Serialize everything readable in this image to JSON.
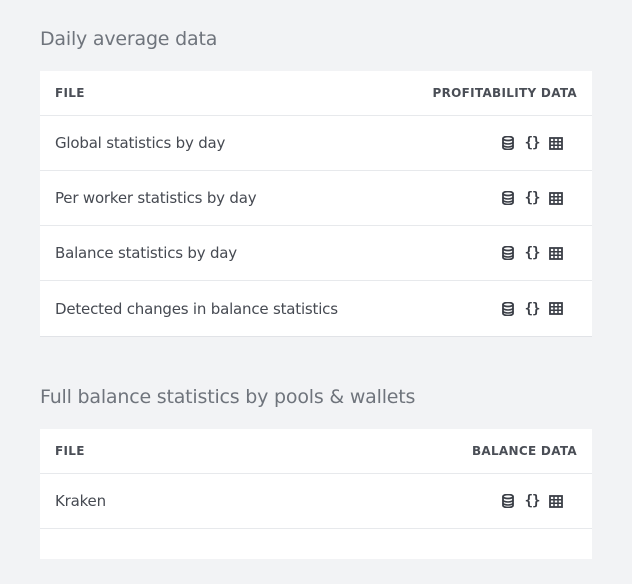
{
  "sections": [
    {
      "title": "Daily average data",
      "col_file": "FILE",
      "col_data": "PROFITABILITY DATA",
      "rows": [
        {
          "name": "Global statistics by day",
          "icons": [
            "database-icon",
            "json-icon",
            "table-icon"
          ]
        },
        {
          "name": "Per worker statistics by day",
          "icons": [
            "database-icon",
            "json-icon",
            "table-icon"
          ]
        },
        {
          "name": "Balance statistics by day",
          "icons": [
            "database-icon",
            "json-icon",
            "table-icon"
          ]
        },
        {
          "name": "Detected changes in balance statistics",
          "icons": [
            "database-icon",
            "json-icon",
            "table-icon"
          ]
        }
      ]
    },
    {
      "title": "Full balance statistics by pools & wallets",
      "col_file": "FILE",
      "col_data": "BALANCE DATA",
      "rows": [
        {
          "name": "Kraken",
          "icons": [
            "database-icon",
            "json-icon",
            "table-icon"
          ]
        },
        {
          "name": "",
          "icons": []
        }
      ]
    }
  ],
  "icon_glyphs": {
    "json": "{}"
  },
  "colors": {
    "background": "#f2f3f5",
    "card": "#ffffff",
    "icon": "#3a3e46"
  }
}
